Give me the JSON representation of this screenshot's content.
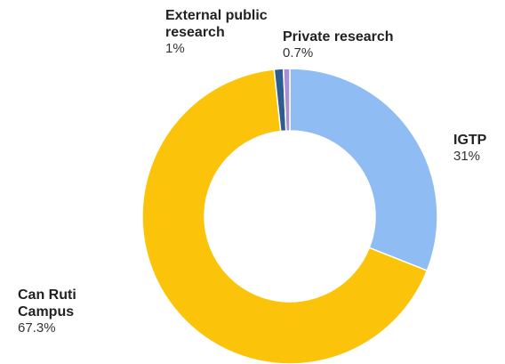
{
  "chart_data": {
    "type": "pie",
    "subtype": "donut",
    "slices": [
      {
        "label": "IGTP",
        "value": 31,
        "value_label": "31%",
        "color": "#8fbdf3"
      },
      {
        "label": "Can Ruti Campus",
        "value": 67.3,
        "value_label": "67.3%",
        "color": "#fbc40a"
      },
      {
        "label": "External public research",
        "value": 1,
        "value_label": "1%",
        "color": "#2f5c8f"
      },
      {
        "label": "Private research",
        "value": 0.7,
        "value_label": "0.7%",
        "color": "#a98ed8"
      }
    ],
    "labels": {
      "igtp": {
        "name": "IGTP",
        "pct": "31%"
      },
      "can_ruti": {
        "name_line1": "Can Ruti",
        "name_line2": "Campus",
        "pct": "67.3%"
      },
      "external": {
        "name_line1": "External public",
        "name_line2": "research",
        "pct": "1%"
      },
      "private": {
        "name": "Private research",
        "pct": "0.7%"
      }
    },
    "start_angle_deg": 0,
    "direction": "clockwise"
  }
}
